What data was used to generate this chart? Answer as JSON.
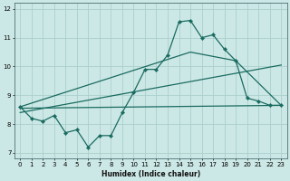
{
  "title": "",
  "xlabel": "Humidex (Indice chaleur)",
  "background_color": "#cce8e6",
  "grid_color": "#aacfcc",
  "line_color": "#1a6b60",
  "xlim": [
    -0.5,
    23.5
  ],
  "ylim": [
    6.8,
    12.2
  ],
  "yticks": [
    7,
    8,
    9,
    10,
    11,
    12
  ],
  "xticks": [
    0,
    1,
    2,
    3,
    4,
    5,
    6,
    7,
    8,
    9,
    10,
    11,
    12,
    13,
    14,
    15,
    16,
    17,
    18,
    19,
    20,
    21,
    22,
    23
  ],
  "series1_x": [
    0,
    1,
    2,
    3,
    4,
    5,
    6,
    7,
    8,
    9,
    10,
    11,
    12,
    13,
    14,
    15,
    16,
    17,
    18,
    19,
    20,
    21,
    22,
    23
  ],
  "series1_y": [
    8.6,
    8.2,
    8.1,
    8.3,
    7.7,
    7.8,
    7.2,
    7.6,
    7.6,
    8.4,
    9.1,
    9.9,
    9.9,
    10.4,
    11.55,
    11.6,
    11.0,
    11.1,
    10.6,
    10.2,
    8.9,
    8.8,
    8.65,
    8.65
  ],
  "series2_x": [
    0,
    23
  ],
  "series2_y": [
    8.55,
    8.65
  ],
  "series3_x": [
    0,
    15,
    19,
    23
  ],
  "series3_y": [
    8.6,
    10.5,
    10.2,
    8.65
  ],
  "series4_x": [
    0,
    23
  ],
  "series4_y": [
    8.4,
    10.05
  ]
}
